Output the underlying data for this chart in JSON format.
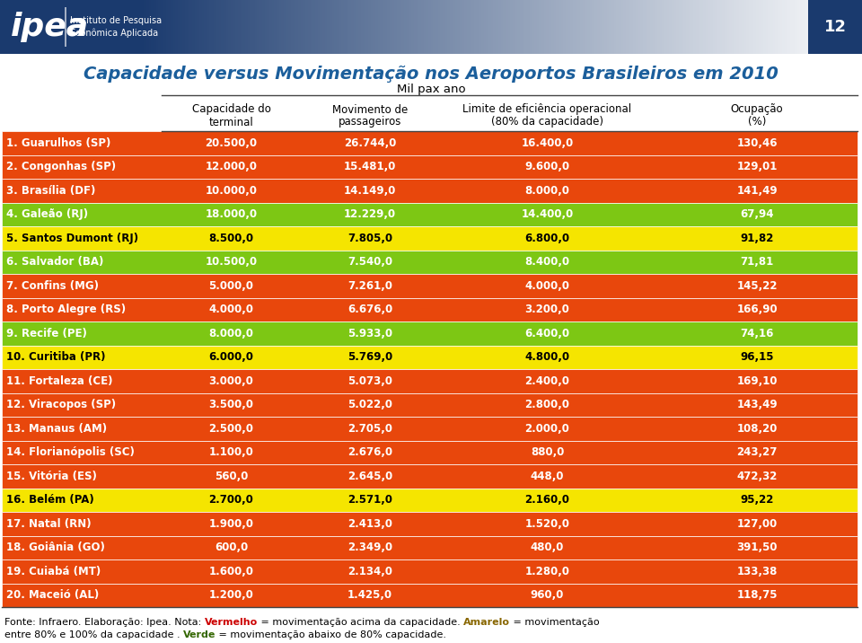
{
  "title": "Capacidade versus Movimentação nos Aeroportos Brasileiros em 2010",
  "subtitle": "Mil pax ano",
  "page_number": "12",
  "col_headers_line1": [
    "",
    "Capacidade do",
    "Movimento de",
    "Limite de eficiência operacional",
    "Ocupação"
  ],
  "col_headers_line2": [
    "",
    "terminal",
    "passageiros",
    "(80% da capacidade)",
    "(%)"
  ],
  "rows": [
    {
      "label": "1. Guarulhos (SP)",
      "cap": "20.500,0",
      "mov": "26.744,0",
      "lim": "16.400,0",
      "ocu": "130,46",
      "color": "#E8470C"
    },
    {
      "label": "2. Congonhas (SP)",
      "cap": "12.000,0",
      "mov": "15.481,0",
      "lim": "9.600,0",
      "ocu": "129,01",
      "color": "#E8470C"
    },
    {
      "label": "3. Brasília (DF)",
      "cap": "10.000,0",
      "mov": "14.149,0",
      "lim": "8.000,0",
      "ocu": "141,49",
      "color": "#E8470C"
    },
    {
      "label": "4. Galeão (RJ)",
      "cap": "18.000,0",
      "mov": "12.229,0",
      "lim": "14.400,0",
      "ocu": "67,94",
      "color": "#7DC714"
    },
    {
      "label": "5. Santos Dumont (RJ)",
      "cap": "8.500,0",
      "mov": "7.805,0",
      "lim": "6.800,0",
      "ocu": "91,82",
      "color": "#F5E500"
    },
    {
      "label": "6. Salvador (BA)",
      "cap": "10.500,0",
      "mov": "7.540,0",
      "lim": "8.400,0",
      "ocu": "71,81",
      "color": "#7DC714"
    },
    {
      "label": "7. Confins (MG)",
      "cap": "5.000,0",
      "mov": "7.261,0",
      "lim": "4.000,0",
      "ocu": "145,22",
      "color": "#E8470C"
    },
    {
      "label": "8. Porto Alegre (RS)",
      "cap": "4.000,0",
      "mov": "6.676,0",
      "lim": "3.200,0",
      "ocu": "166,90",
      "color": "#E8470C"
    },
    {
      "label": "9. Recife (PE)",
      "cap": "8.000,0",
      "mov": "5.933,0",
      "lim": "6.400,0",
      "ocu": "74,16",
      "color": "#7DC714"
    },
    {
      "label": "10. Curitiba (PR)",
      "cap": "6.000,0",
      "mov": "5.769,0",
      "lim": "4.800,0",
      "ocu": "96,15",
      "color": "#F5E500"
    },
    {
      "label": "11. Fortaleza (CE)",
      "cap": "3.000,0",
      "mov": "5.073,0",
      "lim": "2.400,0",
      "ocu": "169,10",
      "color": "#E8470C"
    },
    {
      "label": "12. Viracopos (SP)",
      "cap": "3.500,0",
      "mov": "5.022,0",
      "lim": "2.800,0",
      "ocu": "143,49",
      "color": "#E8470C"
    },
    {
      "label": "13. Manaus (AM)",
      "cap": "2.500,0",
      "mov": "2.705,0",
      "lim": "2.000,0",
      "ocu": "108,20",
      "color": "#E8470C"
    },
    {
      "label": "14. Florianópolis (SC)",
      "cap": "1.100,0",
      "mov": "2.676,0",
      "lim": "880,0",
      "ocu": "243,27",
      "color": "#E8470C"
    },
    {
      "label": "15. Vitória (ES)",
      "cap": "560,0",
      "mov": "2.645,0",
      "lim": "448,0",
      "ocu": "472,32",
      "color": "#E8470C"
    },
    {
      "label": "16. Belém (PA)",
      "cap": "2.700,0",
      "mov": "2.571,0",
      "lim": "2.160,0",
      "ocu": "95,22",
      "color": "#F5E500"
    },
    {
      "label": "17. Natal (RN)",
      "cap": "1.900,0",
      "mov": "2.413,0",
      "lim": "1.520,0",
      "ocu": "127,00",
      "color": "#E8470C"
    },
    {
      "label": "18. Goiânia (GO)",
      "cap": "600,0",
      "mov": "2.349,0",
      "lim": "480,0",
      "ocu": "391,50",
      "color": "#E8470C"
    },
    {
      "label": "19. Cuiabá (MT)",
      "cap": "1.600,0",
      "mov": "2.134,0",
      "lim": "1.280,0",
      "ocu": "133,38",
      "color": "#E8470C"
    },
    {
      "label": "20. Maceió (AL)",
      "cap": "1.200,0",
      "mov": "1.425,0",
      "lim": "960,0",
      "ocu": "118,75",
      "color": "#E8470C"
    }
  ],
  "footnote": [
    [
      {
        "text": "Fonte: Infraero. Elaboração: Ipea. Nota: ",
        "bold": false,
        "color": "black"
      },
      {
        "text": "Vermelho",
        "bold": true,
        "color": "#CC0000"
      },
      {
        "text": " = movimentação acima da capacidade. ",
        "bold": false,
        "color": "black"
      },
      {
        "text": "Amarelo",
        "bold": true,
        "color": "#886600"
      },
      {
        "text": " = movimentação",
        "bold": false,
        "color": "black"
      }
    ],
    [
      {
        "text": "entre 80% e 100% da capacidade . ",
        "bold": false,
        "color": "black"
      },
      {
        "text": "Verde",
        "bold": true,
        "color": "#336600"
      },
      {
        "text": " = movimentação abaixo de 80% capacidade.",
        "bold": false,
        "color": "black"
      }
    ]
  ],
  "title_color": "#1B5E9B",
  "header_dark": "#1A3A6E",
  "header_mid": "#4A6A9E",
  "header_light": "#D0DCF0"
}
